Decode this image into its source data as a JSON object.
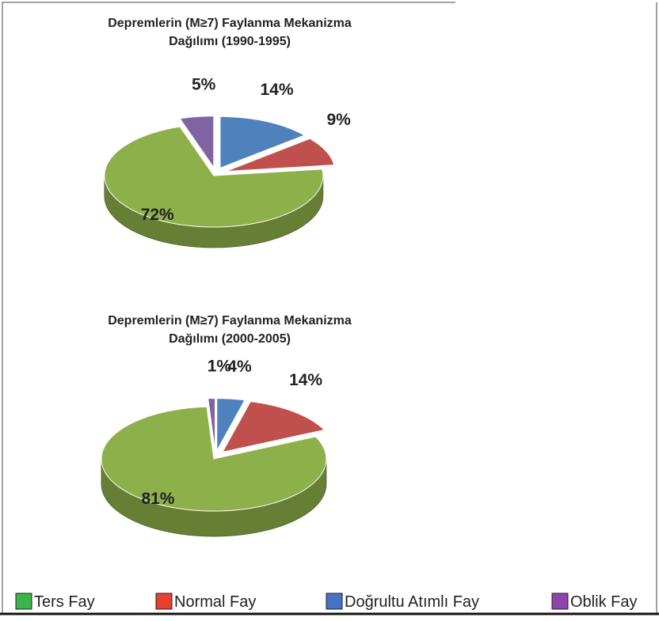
{
  "chart_data": [
    {
      "type": "pie",
      "title": [
        "Depremlerin (M≥7) Faylanma Mekanizma",
        "Dağılımı (1990-1995)"
      ],
      "values": [
        72,
        9,
        14,
        5
      ],
      "value_labels": [
        "72%",
        "9%",
        "14%",
        "5%"
      ]
    },
    {
      "type": "pie",
      "title": [
        "Depremlerin (M≥7) Faylanma Mekanizma",
        "Dağılımı (2000-2005)"
      ],
      "values": [
        81,
        14,
        4,
        1
      ],
      "value_labels": [
        "81%",
        "14%",
        "4%",
        "1%"
      ]
    }
  ],
  "slice_colors": [
    "#8db04a",
    "#c0504d",
    "#4f81bd",
    "#8064a2"
  ],
  "legend": {
    "categories": [
      "Ters Fay",
      "Normal Fay",
      "Doğrultu Atımlı Fay",
      "Oblik Fay"
    ],
    "colors": [
      "#3cb44a",
      "#e8402f",
      "#4472c4",
      "#8e44ad"
    ]
  }
}
